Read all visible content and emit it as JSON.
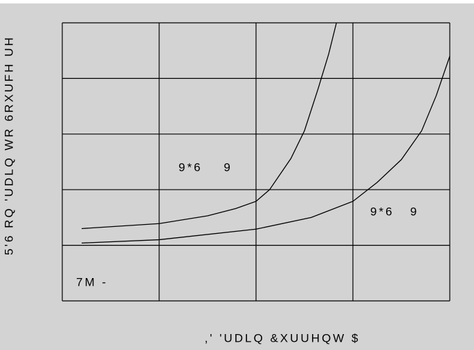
{
  "chart_data": {
    "type": "line",
    "ylabel": "5'6 RQ 'UDLQ WR 6RXUFH UH",
    "xlabel": ",' 'UDLQ &XUUHQW $",
    "annotation": "7M -",
    "xlim": [
      0,
      4
    ],
    "ylim": [
      0,
      5
    ],
    "xticks": [
      0,
      1,
      2,
      3,
      4
    ],
    "yticks": [
      0,
      1,
      2,
      3,
      4,
      5
    ],
    "grid": true,
    "series": [
      {
        "name": "9*6    9",
        "color": "#000000",
        "x": [
          0.2,
          1.0,
          1.5,
          1.79,
          2.0,
          2.14,
          2.36,
          2.5,
          2.64,
          2.75,
          2.83
        ],
        "values": [
          1.3,
          1.39,
          1.53,
          1.66,
          1.79,
          2.0,
          2.56,
          3.06,
          3.81,
          4.44,
          5.0
        ]
      },
      {
        "name": "9*6   9",
        "color": "#000000",
        "x": [
          0.2,
          1.0,
          2.0,
          2.57,
          3.0,
          3.25,
          3.5,
          3.71,
          3.86,
          4.0
        ],
        "values": [
          1.04,
          1.1,
          1.29,
          1.5,
          1.79,
          2.13,
          2.54,
          3.06,
          3.69,
          4.4
        ]
      }
    ]
  }
}
